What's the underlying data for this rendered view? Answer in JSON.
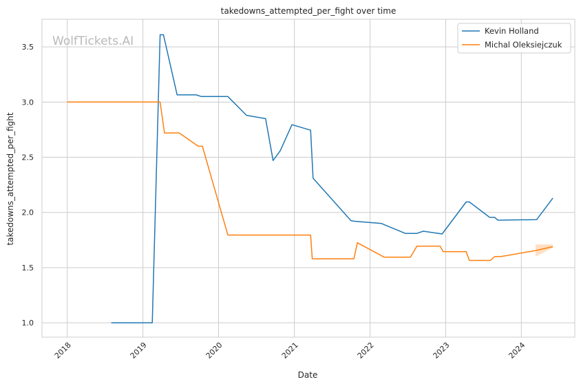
{
  "chart_data": {
    "type": "line",
    "title": "takedowns_attempted_per_fight over time",
    "xlabel": "Date",
    "ylabel": "takedowns_attempted_per_fight",
    "watermark": "WolfTickets.AI",
    "x_ticks": [
      "2018",
      "2019",
      "2020",
      "2021",
      "2022",
      "2023",
      "2024"
    ],
    "y_ticks": [
      "1.0",
      "1.5",
      "2.0",
      "2.5",
      "3.0",
      "3.5"
    ],
    "xlim": [
      "2017-09-01",
      "2024-09-15"
    ],
    "ylim": [
      0.87,
      3.75
    ],
    "grid": true,
    "legend_position": "top-right",
    "series": [
      {
        "name": "Kevin Holland",
        "color": "#1f77b4",
        "points": [
          [
            "2018-08-01",
            1.0
          ],
          [
            "2019-02-15",
            1.0
          ],
          [
            "2019-03-25",
            3.61
          ],
          [
            "2019-04-10",
            3.61
          ],
          [
            "2019-06-15",
            3.065
          ],
          [
            "2019-09-15",
            3.065
          ],
          [
            "2019-10-10",
            3.05
          ],
          [
            "2020-02-15",
            3.05
          ],
          [
            "2020-05-15",
            2.88
          ],
          [
            "2020-08-15",
            2.85
          ],
          [
            "2020-09-20",
            2.47
          ],
          [
            "2020-10-25",
            2.56
          ],
          [
            "2020-12-20",
            2.795
          ],
          [
            "2021-03-20",
            2.745
          ],
          [
            "2021-04-01",
            2.31
          ],
          [
            "2021-10-01",
            1.925
          ],
          [
            "2021-10-20",
            1.92
          ],
          [
            "2022-02-25",
            1.9
          ],
          [
            "2022-06-20",
            1.81
          ],
          [
            "2022-08-15",
            1.81
          ],
          [
            "2022-09-15",
            1.83
          ],
          [
            "2022-12-15",
            1.805
          ],
          [
            "2023-04-10",
            2.095
          ],
          [
            "2023-04-25",
            2.095
          ],
          [
            "2023-08-01",
            1.955
          ],
          [
            "2023-08-25",
            1.955
          ],
          [
            "2023-09-10",
            1.93
          ],
          [
            "2024-03-15",
            1.935
          ],
          [
            "2024-06-01",
            2.13
          ]
        ]
      },
      {
        "name": "Michal Oleksiejczuk",
        "color": "#ff7f0e",
        "points": [
          [
            "2017-12-31",
            3.0
          ],
          [
            "2019-03-25",
            3.0
          ],
          [
            "2019-04-15",
            2.72
          ],
          [
            "2019-06-25",
            2.72
          ],
          [
            "2019-09-25",
            2.6
          ],
          [
            "2019-10-15",
            2.6
          ],
          [
            "2020-02-15",
            1.795
          ],
          [
            "2021-03-20",
            1.795
          ],
          [
            "2021-03-28",
            1.58
          ],
          [
            "2021-10-15",
            1.58
          ],
          [
            "2021-11-01",
            1.725
          ],
          [
            "2022-03-10",
            1.595
          ],
          [
            "2022-07-15",
            1.595
          ],
          [
            "2022-08-15",
            1.695
          ],
          [
            "2022-12-05",
            1.695
          ],
          [
            "2022-12-20",
            1.645
          ],
          [
            "2023-04-10",
            1.645
          ],
          [
            "2023-04-25",
            1.565
          ],
          [
            "2023-08-05",
            1.565
          ],
          [
            "2023-08-25",
            1.6
          ],
          [
            "2023-09-25",
            1.6
          ],
          [
            "2024-03-10",
            1.655
          ],
          [
            "2024-06-01",
            1.69
          ]
        ],
        "band": {
          "upper": [
            [
              "2024-03-10",
              1.71
            ],
            [
              "2024-06-01",
              1.71
            ]
          ],
          "lower": [
            [
              "2024-03-10",
              1.6
            ],
            [
              "2024-06-01",
              1.68
            ]
          ]
        }
      }
    ]
  }
}
